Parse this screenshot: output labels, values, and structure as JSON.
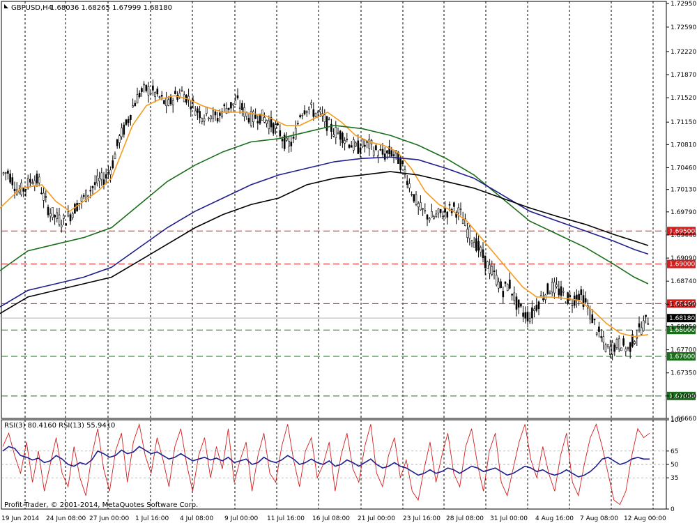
{
  "symbol_label": "GBPUSD,H4",
  "ohlc_header": "1.68036 1.68265 1.67999 1.68180",
  "rsi_header": "RSI(3) 80.4160  RSI(13) 55.9410",
  "copyright": "Profit-Trader, © 2001-2014, MetaQuotes Software Corp.",
  "colors": {
    "candle": "#000000",
    "ma_fast": "#f59b1e",
    "ma_mid": "#1a6e1a",
    "ma_slow": "#1e1e8c",
    "ma_slowest": "#000000",
    "resistance": "#d21e1e",
    "support": "#1a6e1a",
    "rsi3": "#d21e1e",
    "rsi13": "#1e1e8c",
    "price_tag": "#000000"
  },
  "price_axis": {
    "min": 1.6666,
    "max": 1.7298,
    "ticks": [
      "1.72950",
      "1.72590",
      "1.72220",
      "1.71870",
      "1.71520",
      "1.71150",
      "1.70810",
      "1.70460",
      "1.70130",
      "1.69790",
      "1.69440",
      "1.69090",
      "1.68740",
      "1.68390",
      "1.68050",
      "1.67700",
      "1.67350",
      "1.67000",
      "1.66660"
    ]
  },
  "horizontal_levels": [
    {
      "label": "1.69500",
      "type": "resistance"
    },
    {
      "label": "1.69000",
      "type": "resistance"
    },
    {
      "label": "1.68400",
      "type": "resistance"
    },
    {
      "label": "1.68000",
      "type": "support"
    },
    {
      "label": "1.67600",
      "type": "support"
    },
    {
      "label": "1.67000",
      "type": "support"
    }
  ],
  "current_price": "1.68180",
  "time_axis": [
    "19 Jun 2014",
    "24 Jun 08:00",
    "27 Jun 00:00",
    "1 Jul 16:00",
    "4 Jul 08:00",
    "9 Jul 00:00",
    "11 Jul 16:00",
    "16 Jul 08:00",
    "21 Jul 00:00",
    "23 Jul 16:00",
    "28 Jul 08:00",
    "31 Jul 00:00",
    "4 Aug 16:00",
    "7 Aug 08:00",
    "12 Aug 00:00"
  ],
  "rsi_axis": [
    "100",
    "65",
    "50",
    "35",
    "0"
  ],
  "chart_data": {
    "type": "line",
    "title": "GBPUSD,H4",
    "price_ylim": [
      1.6666,
      1.7298
    ],
    "close_path": [
      [
        0,
        1.7035
      ],
      [
        10,
        1.704
      ],
      [
        18,
        1.7025
      ],
      [
        25,
        1.701
      ],
      [
        35,
        1.7015
      ],
      [
        45,
        1.703
      ],
      [
        55,
        1.7025
      ],
      [
        62,
        1.7
      ],
      [
        70,
        1.698
      ],
      [
        80,
        1.697
      ],
      [
        90,
        1.6965
      ],
      [
        100,
        1.6975
      ],
      [
        110,
        1.699
      ],
      [
        120,
        1.7
      ],
      [
        130,
        1.7015
      ],
      [
        140,
        1.7025
      ],
      [
        150,
        1.703
      ],
      [
        160,
        1.705
      ],
      [
        170,
        1.709
      ],
      [
        180,
        1.711
      ],
      [
        190,
        1.714
      ],
      [
        200,
        1.716
      ],
      [
        210,
        1.7165
      ],
      [
        220,
        1.716
      ],
      [
        230,
        1.715
      ],
      [
        240,
        1.714
      ],
      [
        250,
        1.7155
      ],
      [
        260,
        1.716
      ],
      [
        270,
        1.715
      ],
      [
        280,
        1.7135
      ],
      [
        290,
        1.7125
      ],
      [
        300,
        1.713
      ],
      [
        310,
        1.712
      ],
      [
        320,
        1.7135
      ],
      [
        330,
        1.714
      ],
      [
        340,
        1.7145
      ],
      [
        350,
        1.713
      ],
      [
        360,
        1.712
      ],
      [
        370,
        1.7125
      ],
      [
        380,
        1.712
      ],
      [
        390,
        1.711
      ],
      [
        400,
        1.71
      ],
      [
        410,
        1.708
      ],
      [
        420,
        1.7085
      ],
      [
        430,
        1.713
      ],
      [
        440,
        1.714
      ],
      [
        450,
        1.713
      ],
      [
        460,
        1.7125
      ],
      [
        470,
        1.711
      ],
      [
        480,
        1.71
      ],
      [
        490,
        1.7095
      ],
      [
        500,
        1.7085
      ],
      [
        510,
        1.7075
      ],
      [
        520,
        1.708
      ],
      [
        530,
        1.708
      ],
      [
        540,
        1.707
      ],
      [
        550,
        1.7065
      ],
      [
        560,
        1.707
      ],
      [
        570,
        1.706
      ],
      [
        580,
        1.704
      ],
      [
        590,
        1.701
      ],
      [
        600,
        1.6985
      ],
      [
        610,
        1.6975
      ],
      [
        620,
        1.697
      ],
      [
        630,
        1.6975
      ],
      [
        640,
        1.698
      ],
      [
        650,
        1.6985
      ],
      [
        660,
        1.6975
      ],
      [
        670,
        1.695
      ],
      [
        680,
        1.6935
      ],
      [
        690,
        1.6915
      ],
      [
        700,
        1.6895
      ],
      [
        710,
        1.688
      ],
      [
        720,
        1.686
      ],
      [
        730,
        1.687
      ],
      [
        740,
        1.684
      ],
      [
        750,
        1.6825
      ],
      [
        760,
        1.682
      ],
      [
        770,
        1.684
      ],
      [
        780,
        1.6855
      ],
      [
        790,
        1.6865
      ],
      [
        800,
        1.686
      ],
      [
        810,
        1.685
      ],
      [
        820,
        1.6845
      ],
      [
        830,
        1.6855
      ],
      [
        840,
        1.684
      ],
      [
        850,
        1.6815
      ],
      [
        860,
        1.679
      ],
      [
        870,
        1.677
      ],
      [
        880,
        1.6775
      ],
      [
        890,
        1.678
      ],
      [
        900,
        1.677
      ],
      [
        910,
        1.679
      ],
      [
        920,
        1.6805
      ],
      [
        930,
        1.6818
      ]
    ],
    "series": [
      {
        "name": "MA fast",
        "color": "ma_fast",
        "points": [
          [
            0,
            1.6985
          ],
          [
            30,
            1.7015
          ],
          [
            60,
            1.702
          ],
          [
            80,
            1.6995
          ],
          [
            100,
            1.698
          ],
          [
            120,
            1.6995
          ],
          [
            140,
            1.701
          ],
          [
            160,
            1.703
          ],
          [
            175,
            1.707
          ],
          [
            190,
            1.711
          ],
          [
            210,
            1.714
          ],
          [
            230,
            1.715
          ],
          [
            250,
            1.7155
          ],
          [
            270,
            1.715
          ],
          [
            290,
            1.714
          ],
          [
            320,
            1.713
          ],
          [
            350,
            1.713
          ],
          [
            380,
            1.7125
          ],
          [
            410,
            1.711
          ],
          [
            430,
            1.711
          ],
          [
            450,
            1.712
          ],
          [
            470,
            1.713
          ],
          [
            490,
            1.7115
          ],
          [
            510,
            1.7095
          ],
          [
            530,
            1.7085
          ],
          [
            550,
            1.708
          ],
          [
            570,
            1.707
          ],
          [
            590,
            1.7045
          ],
          [
            610,
            1.701
          ],
          [
            630,
            1.699
          ],
          [
            650,
            1.698
          ],
          [
            670,
            1.6965
          ],
          [
            690,
            1.694
          ],
          [
            710,
            1.6915
          ],
          [
            730,
            1.689
          ],
          [
            750,
            1.6865
          ],
          [
            770,
            1.685
          ],
          [
            790,
            1.685
          ],
          [
            810,
            1.6848
          ],
          [
            830,
            1.6845
          ],
          [
            850,
            1.683
          ],
          [
            870,
            1.681
          ],
          [
            890,
            1.6795
          ],
          [
            910,
            1.679
          ],
          [
            930,
            1.6793
          ]
        ]
      },
      {
        "name": "MA mid",
        "color": "ma_mid",
        "points": [
          [
            0,
            1.689
          ],
          [
            40,
            1.692
          ],
          [
            80,
            1.693
          ],
          [
            120,
            1.694
          ],
          [
            160,
            1.6955
          ],
          [
            200,
            1.699
          ],
          [
            240,
            1.7025
          ],
          [
            280,
            1.705
          ],
          [
            320,
            1.707
          ],
          [
            360,
            1.7085
          ],
          [
            400,
            1.709
          ],
          [
            440,
            1.71
          ],
          [
            480,
            1.711
          ],
          [
            520,
            1.7105
          ],
          [
            560,
            1.7095
          ],
          [
            600,
            1.708
          ],
          [
            640,
            1.706
          ],
          [
            680,
            1.7035
          ],
          [
            720,
            1.7
          ],
          [
            760,
            1.6965
          ],
          [
            800,
            1.6945
          ],
          [
            840,
            1.6925
          ],
          [
            880,
            1.69
          ],
          [
            910,
            1.688
          ],
          [
            930,
            1.687
          ]
        ]
      },
      {
        "name": "MA slow",
        "color": "ma_slow",
        "points": [
          [
            0,
            1.6835
          ],
          [
            40,
            1.686
          ],
          [
            80,
            1.687
          ],
          [
            120,
            1.688
          ],
          [
            160,
            1.6895
          ],
          [
            200,
            1.6925
          ],
          [
            240,
            1.6955
          ],
          [
            280,
            1.698
          ],
          [
            320,
            1.7
          ],
          [
            360,
            1.702
          ],
          [
            400,
            1.7035
          ],
          [
            440,
            1.7045
          ],
          [
            480,
            1.7055
          ],
          [
            520,
            1.706
          ],
          [
            560,
            1.7062
          ],
          [
            600,
            1.7058
          ],
          [
            640,
            1.7045
          ],
          [
            680,
            1.703
          ],
          [
            720,
            1.7005
          ],
          [
            760,
            1.698
          ],
          [
            800,
            1.6965
          ],
          [
            840,
            1.695
          ],
          [
            880,
            1.6935
          ],
          [
            910,
            1.6922
          ],
          [
            930,
            1.6915
          ]
        ]
      },
      {
        "name": "MA slowest",
        "color": "ma_slowest",
        "points": [
          [
            0,
            1.6825
          ],
          [
            40,
            1.685
          ],
          [
            80,
            1.686
          ],
          [
            120,
            1.687
          ],
          [
            160,
            1.688
          ],
          [
            200,
            1.6905
          ],
          [
            240,
            1.693
          ],
          [
            280,
            1.6955
          ],
          [
            320,
            1.6975
          ],
          [
            360,
            1.699
          ],
          [
            400,
            1.7
          ],
          [
            440,
            1.702
          ],
          [
            480,
            1.703
          ],
          [
            520,
            1.7035
          ],
          [
            560,
            1.704
          ],
          [
            600,
            1.7035
          ],
          [
            640,
            1.7025
          ],
          [
            680,
            1.7015
          ],
          [
            720,
            1.7
          ],
          [
            760,
            1.6985
          ],
          [
            800,
            1.6972
          ],
          [
            840,
            1.696
          ],
          [
            880,
            1.6945
          ],
          [
            910,
            1.6935
          ],
          [
            930,
            1.6928
          ]
        ]
      }
    ],
    "rsi_ylim": [
      0,
      100
    ],
    "rsi3": [
      70,
      85,
      60,
      40,
      75,
      30,
      65,
      20,
      50,
      80,
      40,
      25,
      70,
      35,
      15,
      60,
      90,
      45,
      20,
      65,
      85,
      30,
      75,
      95,
      60,
      40,
      80,
      55,
      25,
      70,
      90,
      50,
      20,
      60,
      80,
      35,
      70,
      45,
      90,
      30,
      55,
      75,
      20,
      60,
      85,
      40,
      30,
      70,
      95,
      55,
      25,
      65,
      80,
      35,
      50,
      75,
      20,
      60,
      85,
      45,
      30,
      70,
      95,
      40,
      25,
      60,
      80,
      35,
      55,
      20,
      10,
      45,
      75,
      30,
      60,
      85,
      40,
      25,
      70,
      90,
      50,
      20,
      65,
      85,
      30,
      15,
      45,
      75,
      95,
      55,
      35,
      70,
      40,
      20,
      60,
      85,
      30,
      15,
      50,
      80,
      95,
      70,
      40,
      10,
      5,
      20,
      60,
      90,
      80,
      85
    ],
    "rsi13": [
      65,
      70,
      68,
      60,
      58,
      55,
      57,
      52,
      54,
      60,
      56,
      50,
      48,
      52,
      50,
      55,
      65,
      62,
      58,
      60,
      66,
      62,
      64,
      70,
      66,
      62,
      64,
      60,
      56,
      58,
      62,
      58,
      54,
      56,
      58,
      55,
      57,
      54,
      58,
      52,
      54,
      56,
      50,
      52,
      58,
      54,
      52,
      55,
      60,
      56,
      50,
      52,
      56,
      52,
      50,
      54,
      48,
      50,
      55,
      52,
      48,
      52,
      56,
      50,
      46,
      48,
      52,
      48,
      46,
      42,
      38,
      40,
      44,
      40,
      42,
      46,
      44,
      40,
      44,
      48,
      46,
      42,
      44,
      46,
      42,
      38,
      40,
      44,
      48,
      46,
      42,
      44,
      40,
      38,
      40,
      44,
      40,
      36,
      38,
      42,
      48,
      56,
      58,
      54,
      50,
      52,
      56,
      58,
      56,
      56
    ]
  }
}
